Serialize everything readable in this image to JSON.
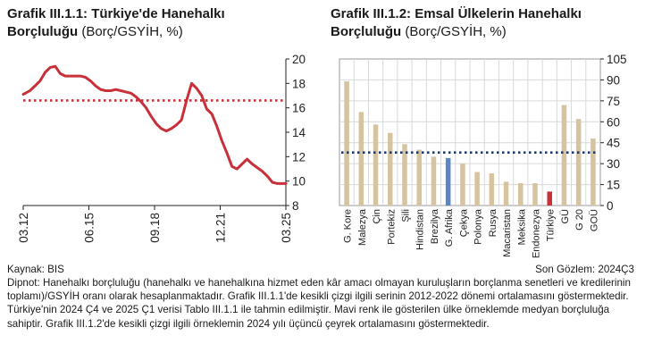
{
  "chart_data": [
    {
      "type": "line",
      "title": "Grafik III.1.1: Türkiye'de Hanehalkı",
      "title_line2": "Borçluluğu",
      "subtitle": "(Borç/GSYİH, %)",
      "x_ticks": [
        "03.12",
        "06.15",
        "09.18",
        "12.21",
        "03.25"
      ],
      "x_range": [
        2012.167,
        2025.167
      ],
      "y_axis_side": "right",
      "ylim": [
        8,
        20
      ],
      "y_ticks": [
        8,
        10,
        12,
        14,
        16,
        18,
        20
      ],
      "series": [
        {
          "color": "#c8303a",
          "points": [
            [
              2012.17,
              17.1
            ],
            [
              2012.5,
              17.4
            ],
            [
              2012.75,
              17.8
            ],
            [
              2013.0,
              18.2
            ],
            [
              2013.25,
              18.9
            ],
            [
              2013.5,
              19.3
            ],
            [
              2013.75,
              19.4
            ],
            [
              2014.0,
              18.8
            ],
            [
              2014.25,
              18.6
            ],
            [
              2014.5,
              18.6
            ],
            [
              2014.75,
              18.6
            ],
            [
              2015.0,
              18.6
            ],
            [
              2015.25,
              18.5
            ],
            [
              2015.5,
              18.2
            ],
            [
              2015.75,
              17.8
            ],
            [
              2016.0,
              17.5
            ],
            [
              2016.25,
              17.4
            ],
            [
              2016.5,
              17.4
            ],
            [
              2016.75,
              17.5
            ],
            [
              2017.0,
              17.4
            ],
            [
              2017.25,
              17.3
            ],
            [
              2017.5,
              17.2
            ],
            [
              2017.75,
              16.9
            ],
            [
              2018.0,
              16.5
            ],
            [
              2018.25,
              16.0
            ],
            [
              2018.5,
              15.3
            ],
            [
              2018.75,
              14.7
            ],
            [
              2019.0,
              14.3
            ],
            [
              2019.25,
              14.1
            ],
            [
              2019.5,
              14.3
            ],
            [
              2019.75,
              14.6
            ],
            [
              2020.0,
              15.0
            ],
            [
              2020.25,
              16.6
            ],
            [
              2020.5,
              18.0
            ],
            [
              2020.75,
              17.6
            ],
            [
              2021.0,
              17.0
            ],
            [
              2021.25,
              15.9
            ],
            [
              2021.5,
              15.5
            ],
            [
              2021.75,
              14.5
            ],
            [
              2022.0,
              13.3
            ],
            [
              2022.25,
              12.3
            ],
            [
              2022.5,
              11.2
            ],
            [
              2022.75,
              11.0
            ],
            [
              2023.0,
              11.4
            ],
            [
              2023.25,
              11.8
            ],
            [
              2023.5,
              11.4
            ],
            [
              2023.75,
              11.1
            ],
            [
              2024.0,
              10.8
            ],
            [
              2024.25,
              10.4
            ],
            [
              2024.5,
              9.9
            ],
            [
              2024.75,
              9.8
            ],
            [
              2025.0,
              9.8
            ],
            [
              2025.17,
              9.8
            ]
          ]
        }
      ],
      "reference_line": {
        "value": 16.6,
        "color": "#c8303a",
        "style": "dotted"
      }
    },
    {
      "type": "bar",
      "title": "Grafik III.1.2: Emsal Ülkelerin Hanehalkı",
      "title_line2": "Borçluluğu",
      "subtitle": "(Borç/GSYİH, %)",
      "categories": [
        "G. Kore",
        "Malezya",
        "Çin",
        "Portekiz",
        "Şili",
        "Hindistan",
        "Brezilya",
        "G. Afrika",
        "Çekya",
        "Polonya",
        "Rusya",
        "Macaristan",
        "Meksika",
        "Endonezya",
        "Türkiye",
        "GÜ",
        "G 20",
        "GOÜ"
      ],
      "values": [
        89,
        67,
        58,
        52,
        44,
        40,
        35,
        34,
        30,
        24,
        23,
        17,
        16,
        16,
        10,
        72,
        62,
        48
      ],
      "bar_colors": [
        "#d6c3a0",
        "#d6c3a0",
        "#d6c3a0",
        "#d6c3a0",
        "#d6c3a0",
        "#d6c3a0",
        "#d6c3a0",
        "#5b86c4",
        "#d6c3a0",
        "#d6c3a0",
        "#d6c3a0",
        "#d6c3a0",
        "#d6c3a0",
        "#d6c3a0",
        "#c8303a",
        "#d6c3a0",
        "#d6c3a0",
        "#d6c3a0"
      ],
      "y_axis_side": "right",
      "ylim": [
        0,
        105
      ],
      "y_ticks": [
        0,
        15,
        30,
        45,
        60,
        75,
        90,
        105
      ],
      "grid": true,
      "reference_line": {
        "value": 38,
        "color": "#1f3a6e",
        "style": "dotted"
      }
    }
  ],
  "footer": {
    "source": "Kaynak: BIS",
    "last_observation": "Son Gözlem: 2024Ç3",
    "note": "Dipnot: Hanehalkı borçluluğu (hanehalkı ve hanehalkına hizmet eden kâr amacı olmayan kuruluşların borçlanma senetleri ve kredilerinin toplamı)/GSYİH oranı olarak hesaplanmaktadır. Grafik III.1.1'de kesikli çizgi ilgili serinin 2012-2022 dönemi ortalamasını göstermektedir. Türkiye'nin 2024 Ç4 ve 2025 Ç1 verisi Tablo III.1.1 ile tahmin edilmiştir. Mavi renk ile gösterilen ülke örneklemde medyan borçluluğa sahiptir. Grafik III.1.2'de kesikli çizgi ilgili örneklemin 2024 yılı üçüncü çeyrek ortalamasını göstermektedir."
  }
}
